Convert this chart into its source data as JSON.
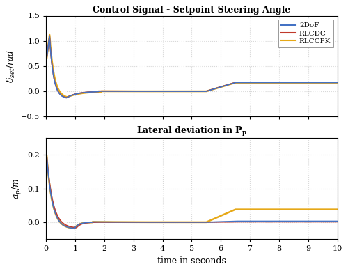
{
  "title1": "Control Signal - Setpoint Steering Angle",
  "title2": "Lateral deviation in $\\mathbf{P_p}$",
  "xlabel": "time in seconds",
  "ylabel1": "$\\delta_{set}/rad$",
  "ylabel2": "$a_p/m$",
  "xlim": [
    0,
    10
  ],
  "ylim1": [
    -0.5,
    1.5
  ],
  "ylim2": [
    -0.05,
    0.25
  ],
  "yticks1": [
    -0.5,
    0.0,
    0.5,
    1.0,
    1.5
  ],
  "yticks2": [
    0.0,
    0.1,
    0.2
  ],
  "xticks": [
    0,
    1,
    2,
    3,
    4,
    5,
    6,
    7,
    8,
    9,
    10
  ],
  "colors": {
    "2DoF": "#4472C4",
    "RLCDC": "#C0392B",
    "RLCCPK": "#E6A817"
  },
  "legend_labels": [
    "2DoF",
    "RLCDC",
    "RLCCPK"
  ],
  "background": "#FFFFFF",
  "grid_color": "#D0D0D0",
  "linewidth": 1.2
}
